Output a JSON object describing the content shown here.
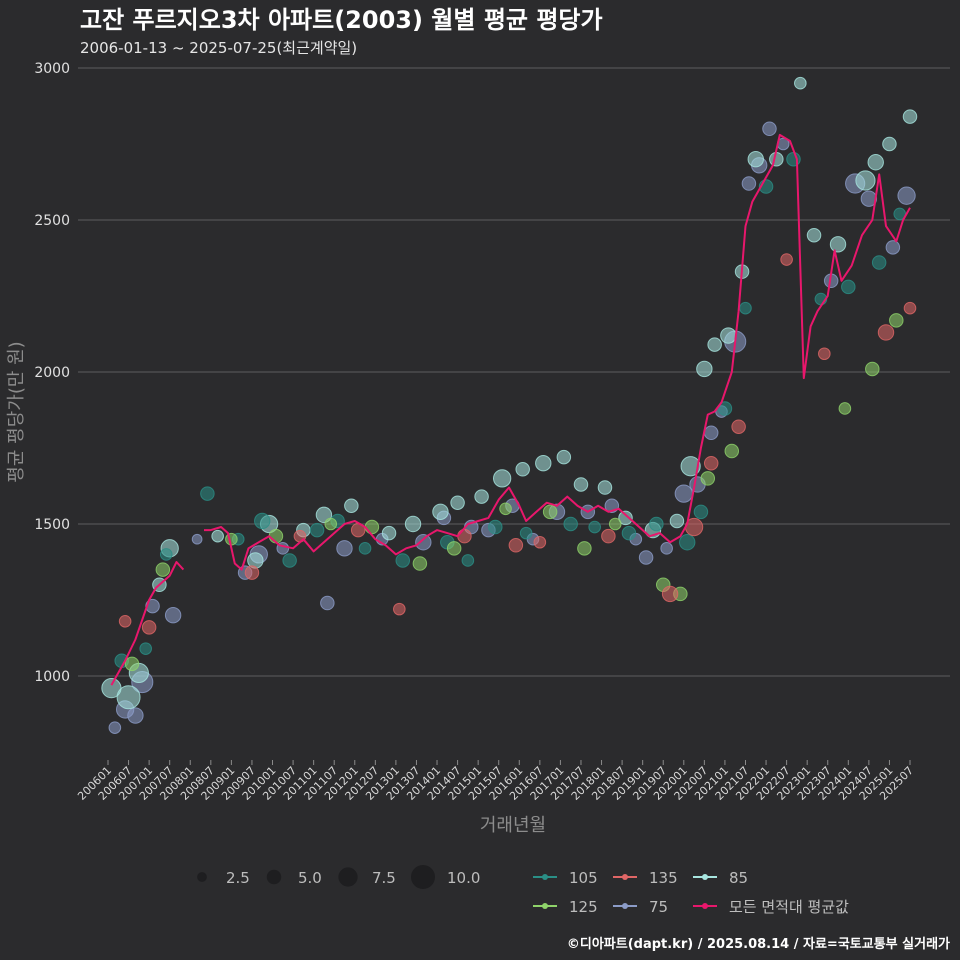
{
  "chart_data": {
    "type": "scatter",
    "title": "고잔 푸르지오3차 아파트(2003) 월별 평균 평당가",
    "subtitle": "2006-01-13 ~ 2025-07-25(최근계약일)",
    "xlabel": "거래년월",
    "ylabel": "평균 평당가(만 원)",
    "caption": "©디아파트(dapt.kr) / 2025.08.14 / 자료=국토교통부 실거래가",
    "ylim": [
      700,
      3000
    ],
    "yticks": [
      1000,
      1500,
      2000,
      2500,
      3000
    ],
    "x_start": "200601",
    "x_end": "202507",
    "xticks": [
      "200601",
      "200607",
      "200701",
      "200707",
      "200801",
      "200807",
      "200901",
      "200907",
      "201001",
      "201007",
      "201101",
      "201107",
      "201201",
      "201207",
      "201301",
      "201307",
      "201401",
      "201407",
      "201501",
      "201507",
      "201601",
      "201607",
      "201701",
      "201707",
      "201801",
      "201807",
      "201901",
      "201907",
      "202001",
      "202007",
      "202101",
      "202107",
      "202201",
      "202207",
      "202301",
      "202307",
      "202401",
      "202407",
      "202501",
      "202507"
    ],
    "grid": true,
    "legend_position": "bottom",
    "size_legend": {
      "values": [
        "2.5",
        "5.0",
        "7.5",
        "10.0"
      ],
      "sizes": [
        2.5,
        5.0,
        7.5,
        10.0
      ]
    },
    "series_legend": [
      {
        "name": "105",
        "color": "#2a8f86"
      },
      {
        "name": "135",
        "color": "#e06666"
      },
      {
        "name": "85",
        "color": "#a8e6e0"
      },
      {
        "name": "125",
        "color": "#8fd36a"
      },
      {
        "name": "75",
        "color": "#8c9cc8"
      },
      {
        "name": "모든 면적대 평균값",
        "color": "#e8176c"
      }
    ],
    "average_line": {
      "name": "모든 면적대 평균값",
      "color": "#e8176c",
      "points": [
        [
          "2006-02",
          970
        ],
        [
          "2006-06",
          1050
        ],
        [
          "2006-09",
          1120
        ],
        [
          "2007-01",
          1250
        ],
        [
          "2007-03",
          1290
        ],
        [
          "2007-05",
          1310
        ],
        [
          "2007-07",
          1330
        ],
        [
          "2007-09",
          1375
        ],
        [
          "2007-11",
          1350
        ],
        [
          "2008-05",
          1480
        ],
        [
          "2008-07",
          1480
        ],
        [
          "2008-10",
          1490
        ],
        [
          "2008-12",
          1470
        ],
        [
          "2009-02",
          1370
        ],
        [
          "2009-04",
          1350
        ],
        [
          "2009-06",
          1420
        ],
        [
          "2009-09",
          1440
        ],
        [
          "2009-12",
          1460
        ],
        [
          "2010-03",
          1430
        ],
        [
          "2010-07",
          1420
        ],
        [
          "2010-10",
          1450
        ],
        [
          "2011-01",
          1410
        ],
        [
          "2011-04",
          1440
        ],
        [
          "2011-07",
          1470
        ],
        [
          "2011-10",
          1500
        ],
        [
          "2012-01",
          1510
        ],
        [
          "2012-04",
          1490
        ],
        [
          "2012-07",
          1450
        ],
        [
          "2012-10",
          1430
        ],
        [
          "2013-01",
          1400
        ],
        [
          "2013-04",
          1420
        ],
        [
          "2013-07",
          1430
        ],
        [
          "2013-10",
          1460
        ],
        [
          "2014-01",
          1480
        ],
        [
          "2014-04",
          1470
        ],
        [
          "2014-07",
          1460
        ],
        [
          "2014-10",
          1500
        ],
        [
          "2015-01",
          1510
        ],
        [
          "2015-04",
          1520
        ],
        [
          "2015-07",
          1580
        ],
        [
          "2015-10",
          1620
        ],
        [
          "2016-01",
          1560
        ],
        [
          "2016-03",
          1510
        ],
        [
          "2016-06",
          1540
        ],
        [
          "2016-09",
          1570
        ],
        [
          "2016-12",
          1560
        ],
        [
          "2017-03",
          1590
        ],
        [
          "2017-06",
          1560
        ],
        [
          "2017-09",
          1540
        ],
        [
          "2017-12",
          1560
        ],
        [
          "2018-03",
          1540
        ],
        [
          "2018-06",
          1550
        ],
        [
          "2018-09",
          1520
        ],
        [
          "2018-12",
          1490
        ],
        [
          "2019-03",
          1460
        ],
        [
          "2019-06",
          1470
        ],
        [
          "2019-09",
          1440
        ],
        [
          "2019-12",
          1460
        ],
        [
          "2020-02",
          1500
        ],
        [
          "2020-04",
          1620
        ],
        [
          "2020-06",
          1750
        ],
        [
          "2020-08",
          1860
        ],
        [
          "2020-10",
          1870
        ],
        [
          "2020-12",
          1900
        ],
        [
          "2021-03",
          2000
        ],
        [
          "2021-05",
          2200
        ],
        [
          "2021-07",
          2480
        ],
        [
          "2021-09",
          2560
        ],
        [
          "2021-12",
          2620
        ],
        [
          "2022-03",
          2680
        ],
        [
          "2022-05",
          2780
        ],
        [
          "2022-08",
          2760
        ],
        [
          "2022-10",
          2700
        ],
        [
          "2022-12",
          1980
        ],
        [
          "2023-02",
          2150
        ],
        [
          "2023-04",
          2200
        ],
        [
          "2023-07",
          2250
        ],
        [
          "2023-09",
          2400
        ],
        [
          "2023-11",
          2300
        ],
        [
          "2024-02",
          2350
        ],
        [
          "2024-05",
          2450
        ],
        [
          "2024-08",
          2500
        ],
        [
          "2024-10",
          2650
        ],
        [
          "2024-12",
          2480
        ],
        [
          "2025-03",
          2430
        ],
        [
          "2025-05",
          2500
        ],
        [
          "2025-07",
          2540
        ]
      ]
    },
    "series": [
      {
        "name": "75",
        "points": [
          [
            "2006-03",
            830,
            4
          ],
          [
            "2006-06",
            890,
            7
          ],
          [
            "2006-09",
            870,
            6
          ],
          [
            "2006-11",
            980,
            9
          ],
          [
            "2007-02",
            1230,
            5
          ],
          [
            "2007-08",
            1200,
            6
          ],
          [
            "2008-03",
            1450,
            3
          ],
          [
            "2009-05",
            1340,
            5
          ],
          [
            "2009-09",
            1400,
            7
          ],
          [
            "2010-04",
            1420,
            4
          ],
          [
            "2011-05",
            1240,
            5
          ],
          [
            "2011-10",
            1420,
            6
          ],
          [
            "2012-09",
            1450,
            4
          ],
          [
            "2013-09",
            1440,
            6
          ],
          [
            "2014-03",
            1520,
            5
          ],
          [
            "2014-11",
            1490,
            5
          ],
          [
            "2015-04",
            1480,
            5
          ],
          [
            "2015-11",
            1560,
            5
          ],
          [
            "2016-05",
            1450,
            4
          ],
          [
            "2016-12",
            1540,
            6
          ],
          [
            "2017-09",
            1540,
            5
          ],
          [
            "2018-04",
            1560,
            5
          ],
          [
            "2018-11",
            1450,
            4
          ],
          [
            "2019-02",
            1390,
            5
          ],
          [
            "2019-08",
            1420,
            4
          ],
          [
            "2020-01",
            1600,
            7
          ],
          [
            "2020-05",
            1630,
            6
          ],
          [
            "2020-09",
            1800,
            5
          ],
          [
            "2020-12",
            1870,
            4
          ],
          [
            "2021-04",
            2100,
            9
          ],
          [
            "2021-08",
            2620,
            5
          ],
          [
            "2021-11",
            2680,
            6
          ],
          [
            "2022-02",
            2800,
            5
          ],
          [
            "2022-06",
            2750,
            4
          ],
          [
            "2023-08",
            2300,
            5
          ],
          [
            "2024-03",
            2620,
            8
          ],
          [
            "2024-07",
            2570,
            6
          ],
          [
            "2025-02",
            2410,
            5
          ],
          [
            "2025-06",
            2580,
            7
          ]
        ]
      },
      {
        "name": "85",
        "points": [
          [
            "2006-02",
            960,
            8
          ],
          [
            "2006-07",
            930,
            10
          ],
          [
            "2006-10",
            1010,
            8
          ],
          [
            "2007-04",
            1300,
            5
          ],
          [
            "2007-07",
            1420,
            7
          ],
          [
            "2008-09",
            1460,
            4
          ],
          [
            "2009-08",
            1380,
            6
          ],
          [
            "2009-12",
            1500,
            7
          ],
          [
            "2010-10",
            1480,
            5
          ],
          [
            "2011-04",
            1530,
            6
          ],
          [
            "2011-12",
            1560,
            5
          ],
          [
            "2012-11",
            1470,
            5
          ],
          [
            "2013-06",
            1500,
            6
          ],
          [
            "2014-02",
            1540,
            6
          ],
          [
            "2014-07",
            1570,
            5
          ],
          [
            "2015-02",
            1590,
            5
          ],
          [
            "2015-08",
            1650,
            7
          ],
          [
            "2016-02",
            1680,
            5
          ],
          [
            "2016-08",
            1700,
            6
          ],
          [
            "2017-02",
            1720,
            5
          ],
          [
            "2017-07",
            1630,
            5
          ],
          [
            "2018-02",
            1620,
            5
          ],
          [
            "2018-08",
            1520,
            5
          ],
          [
            "2019-04",
            1480,
            6
          ],
          [
            "2019-11",
            1510,
            5
          ],
          [
            "2020-03",
            1690,
            8
          ],
          [
            "2020-07",
            2010,
            6
          ],
          [
            "2020-10",
            2090,
            5
          ],
          [
            "2021-02",
            2120,
            6
          ],
          [
            "2021-06",
            2330,
            5
          ],
          [
            "2021-10",
            2700,
            6
          ],
          [
            "2022-04",
            2700,
            5
          ],
          [
            "2022-11",
            2950,
            4
          ],
          [
            "2023-03",
            2450,
            5
          ],
          [
            "2023-10",
            2420,
            6
          ],
          [
            "2024-06",
            2630,
            8
          ],
          [
            "2024-09",
            2690,
            6
          ],
          [
            "2025-01",
            2750,
            5
          ],
          [
            "2025-07",
            2840,
            5
          ]
        ]
      },
      {
        "name": "105",
        "points": [
          [
            "2006-05",
            1050,
            5
          ],
          [
            "2006-12",
            1090,
            4
          ],
          [
            "2007-06",
            1400,
            4
          ],
          [
            "2008-06",
            1600,
            5
          ],
          [
            "2009-03",
            1450,
            4
          ],
          [
            "2009-10",
            1510,
            6
          ],
          [
            "2010-06",
            1380,
            5
          ],
          [
            "2011-02",
            1480,
            5
          ],
          [
            "2011-08",
            1510,
            5
          ],
          [
            "2012-04",
            1420,
            4
          ],
          [
            "2013-03",
            1380,
            5
          ],
          [
            "2014-04",
            1440,
            5
          ],
          [
            "2014-10",
            1380,
            4
          ],
          [
            "2015-06",
            1490,
            5
          ],
          [
            "2016-03",
            1470,
            4
          ],
          [
            "2017-04",
            1500,
            5
          ],
          [
            "2017-11",
            1490,
            4
          ],
          [
            "2018-09",
            1470,
            5
          ],
          [
            "2019-05",
            1500,
            5
          ],
          [
            "2020-02",
            1440,
            6
          ],
          [
            "2020-06",
            1540,
            5
          ],
          [
            "2021-01",
            1880,
            5
          ],
          [
            "2021-07",
            2210,
            4
          ],
          [
            "2022-01",
            2610,
            5
          ],
          [
            "2022-09",
            2700,
            5
          ],
          [
            "2023-05",
            2240,
            4
          ],
          [
            "2024-01",
            2280,
            5
          ],
          [
            "2024-10",
            2360,
            5
          ],
          [
            "2025-04",
            2520,
            4
          ]
        ]
      },
      {
        "name": "125",
        "points": [
          [
            "2006-08",
            1040,
            5
          ],
          [
            "2007-05",
            1350,
            5
          ],
          [
            "2009-01",
            1450,
            4
          ],
          [
            "2010-02",
            1460,
            5
          ],
          [
            "2011-06",
            1500,
            4
          ],
          [
            "2012-06",
            1490,
            5
          ],
          [
            "2013-08",
            1370,
            5
          ],
          [
            "2014-06",
            1420,
            5
          ],
          [
            "2015-09",
            1550,
            4
          ],
          [
            "2016-10",
            1540,
            5
          ],
          [
            "2017-08",
            1420,
            5
          ],
          [
            "2018-05",
            1500,
            4
          ],
          [
            "2019-07",
            1300,
            5
          ],
          [
            "2019-12",
            1270,
            5
          ],
          [
            "2020-08",
            1650,
            5
          ],
          [
            "2021-03",
            1740,
            5
          ],
          [
            "2023-12",
            1880,
            4
          ],
          [
            "2024-08",
            2010,
            5
          ],
          [
            "2025-03",
            2170,
            5
          ]
        ]
      },
      {
        "name": "135",
        "points": [
          [
            "2006-06",
            1180,
            4
          ],
          [
            "2007-01",
            1160,
            5
          ],
          [
            "2009-07",
            1340,
            5
          ],
          [
            "2010-09",
            1460,
            4
          ],
          [
            "2012-02",
            1480,
            5
          ],
          [
            "2013-02",
            1220,
            4
          ],
          [
            "2014-09",
            1460,
            5
          ],
          [
            "2015-12",
            1430,
            5
          ],
          [
            "2016-07",
            1440,
            4
          ],
          [
            "2018-03",
            1460,
            5
          ],
          [
            "2019-09",
            1270,
            6
          ],
          [
            "2020-04",
            1490,
            7
          ],
          [
            "2020-09",
            1700,
            5
          ],
          [
            "2021-05",
            1820,
            5
          ],
          [
            "2022-07",
            2370,
            4
          ],
          [
            "2023-06",
            2060,
            4
          ],
          [
            "2024-12",
            2130,
            6
          ],
          [
            "2025-07",
            2210,
            4
          ]
        ]
      }
    ]
  }
}
